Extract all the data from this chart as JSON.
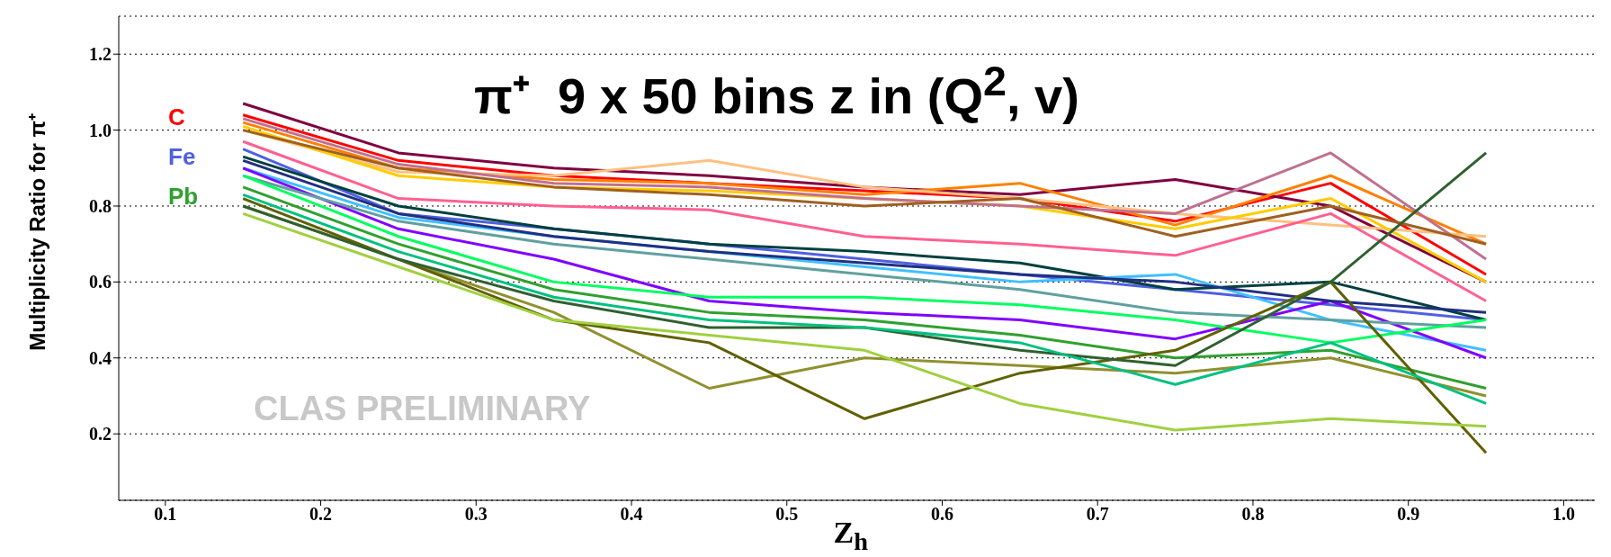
{
  "chart_data": {
    "type": "line",
    "title": "π⁺  9 x 50 bins z in (Q$^{2}$, v)",
    "xlabel": "Z$_{h}$",
    "ylabel": "Multiplicity Ratio for  π⁺",
    "annotations": [
      "CLAS PRELIMINARY"
    ],
    "x": [
      0.15,
      0.25,
      0.35,
      0.45,
      0.55,
      0.65,
      0.75,
      0.85,
      0.95
    ],
    "xlim": [
      0.07,
      1.02
    ],
    "xticks": [
      0.1,
      0.2,
      0.3,
      0.4,
      0.5,
      0.6,
      0.7,
      0.8,
      0.9,
      {
        "value": 1,
        "label": "1.0"
      }
    ],
    "ylim": [
      0.025,
      1.3
    ],
    "yticks": [
      0.2,
      0.4,
      0.6,
      0.8,
      {
        "value": 1,
        "label": "1.0"
      },
      1.2
    ],
    "grid": "y",
    "legend": "top left",
    "marker": "none",
    "series": [
      {
        "name": "C",
        "color": "#ff0000",
        "values": [
          1.04,
          0.92,
          0.88,
          0.86,
          0.84,
          0.82,
          0.76,
          0.86,
          0.62
        ]
      },
      {
        "color": "#800040",
        "values": [
          1.07,
          0.94,
          0.9,
          0.88,
          0.85,
          0.83,
          0.87,
          0.8,
          0.6
        ]
      },
      {
        "color": "#ff8000",
        "values": [
          1.02,
          0.9,
          0.87,
          0.86,
          0.83,
          0.86,
          0.75,
          0.88,
          0.7
        ]
      },
      {
        "color": "#ffc080",
        "values": [
          1.0,
          0.89,
          0.88,
          0.92,
          0.85,
          0.82,
          0.78,
          0.75,
          0.72
        ]
      },
      {
        "color": "#ff6090",
        "values": [
          0.97,
          0.82,
          0.8,
          0.79,
          0.72,
          0.7,
          0.67,
          0.78,
          0.55
        ]
      },
      {
        "color": "#ffcc00",
        "values": [
          1.01,
          0.88,
          0.85,
          0.84,
          0.82,
          0.8,
          0.74,
          0.82,
          0.6
        ]
      },
      {
        "color": "#c07090",
        "values": [
          1.03,
          0.91,
          0.86,
          0.85,
          0.82,
          0.8,
          0.78,
          0.94,
          0.66
        ]
      },
      {
        "color": "#a06020",
        "values": [
          1.0,
          0.9,
          0.85,
          0.83,
          0.8,
          0.82,
          0.72,
          0.8,
          0.7
        ]
      },
      {
        "name": "Fe",
        "color": "#5060e0",
        "values": [
          0.95,
          0.78,
          0.74,
          0.7,
          0.66,
          0.62,
          0.58,
          0.54,
          0.5
        ]
      },
      {
        "color": "#004040",
        "values": [
          0.93,
          0.8,
          0.74,
          0.7,
          0.68,
          0.65,
          0.58,
          0.6,
          0.5
        ]
      },
      {
        "color": "#40c0ff",
        "values": [
          0.9,
          0.77,
          0.72,
          0.68,
          0.64,
          0.6,
          0.62,
          0.5,
          0.42
        ]
      },
      {
        "color": "#8000ff",
        "values": [
          0.9,
          0.74,
          0.66,
          0.55,
          0.52,
          0.5,
          0.45,
          0.55,
          0.4
        ]
      },
      {
        "color": "#60a0a0",
        "values": [
          0.88,
          0.76,
          0.7,
          0.66,
          0.62,
          0.58,
          0.52,
          0.5,
          0.48
        ]
      },
      {
        "color": "#203080",
        "values": [
          0.92,
          0.78,
          0.72,
          0.68,
          0.65,
          0.62,
          0.6,
          0.55,
          0.52
        ]
      },
      {
        "name": "Pb",
        "color": "#30a030",
        "values": [
          0.85,
          0.7,
          0.58,
          0.52,
          0.5,
          0.46,
          0.4,
          0.42,
          0.32
        ]
      },
      {
        "color": "#00ff60",
        "values": [
          0.88,
          0.72,
          0.6,
          0.56,
          0.56,
          0.54,
          0.5,
          0.44,
          0.5
        ]
      },
      {
        "color": "#909030",
        "values": [
          0.8,
          0.66,
          0.52,
          0.32,
          0.4,
          0.38,
          0.36,
          0.4,
          0.3
        ]
      },
      {
        "color": "#606000",
        "values": [
          0.82,
          0.66,
          0.5,
          0.44,
          0.24,
          0.36,
          0.42,
          0.6,
          0.15
        ]
      },
      {
        "color": "#a0d040",
        "values": [
          0.78,
          0.64,
          0.5,
          0.46,
          0.42,
          0.28,
          0.21,
          0.24,
          0.22
        ]
      },
      {
        "color": "#306030",
        "values": [
          0.8,
          0.66,
          0.55,
          0.48,
          0.48,
          0.42,
          0.38,
          0.6,
          0.94
        ]
      },
      {
        "color": "#00c080",
        "values": [
          0.83,
          0.68,
          0.56,
          0.5,
          0.48,
          0.44,
          0.33,
          0.44,
          0.28
        ]
      }
    ]
  }
}
